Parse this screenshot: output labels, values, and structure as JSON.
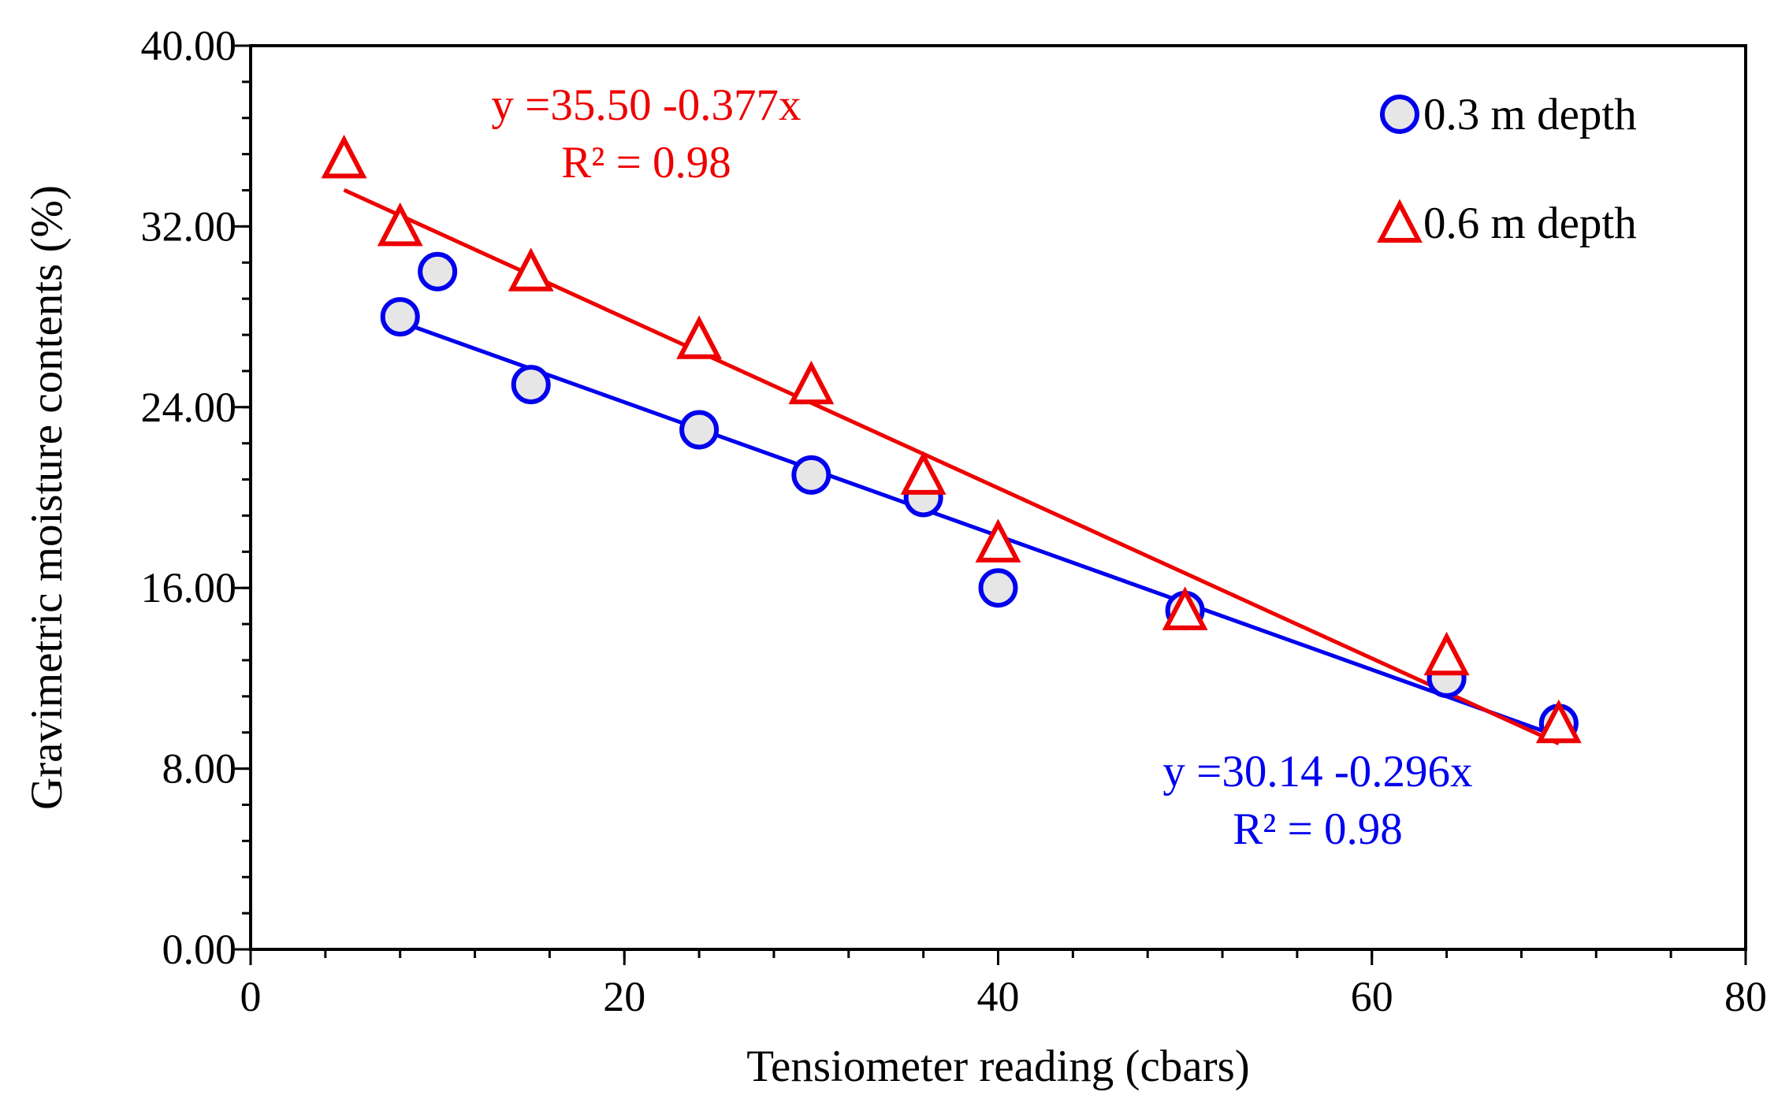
{
  "chart_data": {
    "type": "scatter",
    "title": "",
    "xlabel": "Tensiometer reading (cbars)",
    "ylabel": "Gravimetric moisture contents (%)",
    "xlim": [
      0,
      80
    ],
    "ylim": [
      0,
      40
    ],
    "x_ticks": [
      0,
      20,
      40,
      60,
      80
    ],
    "y_ticks": [
      0,
      8,
      16,
      24,
      32,
      40
    ],
    "x_tick_labels": [
      "0",
      "20",
      "40",
      "60",
      "80"
    ],
    "y_tick_labels": [
      "0.00",
      "8.00",
      "16.00",
      "24.00",
      "32.00",
      "40.00"
    ],
    "x_minor_step": 4,
    "y_minor_step": 1.6,
    "grid": false,
    "legend_position": "top-right",
    "series": [
      {
        "name": "0.3 m depth",
        "marker": "circle",
        "color": "#0000ee",
        "marker_fill": "#e6e6e6",
        "x": [
          8,
          10,
          15,
          24,
          30,
          36,
          40,
          50,
          64,
          70
        ],
        "y": [
          28,
          30,
          25,
          23,
          21,
          20,
          16,
          15,
          12,
          10
        ],
        "trendline": {
          "intercept": 30.14,
          "slope": -0.296,
          "x_range": [
            8,
            70
          ],
          "equation": "y =30.14 -0.296x",
          "r2": "R² = 0.98",
          "label_position": "bottom-right"
        }
      },
      {
        "name": "0.6 m depth",
        "marker": "triangle",
        "color": "#ee0000",
        "marker_fill": "#ffffff",
        "x": [
          5,
          8,
          15,
          24,
          30,
          36,
          40,
          50,
          64,
          70
        ],
        "y": [
          35,
          32,
          30,
          27,
          25,
          21,
          18,
          15,
          13,
          10
        ],
        "trendline": {
          "intercept": 35.5,
          "slope": -0.377,
          "x_range": [
            5,
            70
          ],
          "equation": "y =35.50 -0.377x",
          "r2": "R² = 0.98",
          "label_position": "top-left"
        }
      }
    ]
  }
}
